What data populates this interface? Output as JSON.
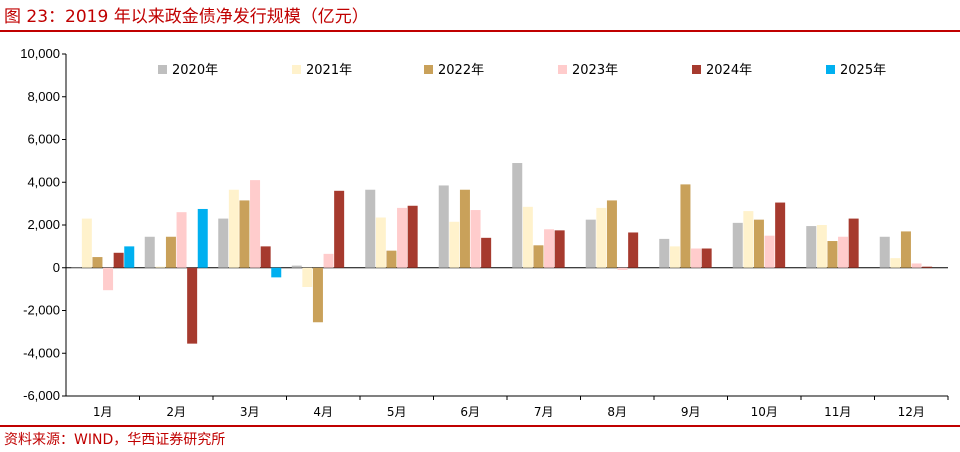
{
  "header": {
    "title": "图 23：2019 年以来政金债净发行规模（亿元）"
  },
  "footer": {
    "source": "资料来源：WIND，华西证券研究所"
  },
  "chart_data": {
    "type": "bar",
    "title": "2019 年以来政金债净发行规模（亿元）",
    "xlabel": "",
    "ylabel": "",
    "ylim": [
      -6000,
      10000
    ],
    "yticks": [
      10000,
      8000,
      6000,
      4000,
      2000,
      0,
      -2000,
      -4000,
      -6000
    ],
    "ytick_labels": [
      "10,000",
      "8,000",
      "6,000",
      "4,000",
      "2,000",
      "0",
      "-2,000",
      "-4,000",
      "-6,000"
    ],
    "grid": false,
    "legend_position": "top",
    "categories": [
      "1月",
      "2月",
      "3月",
      "4月",
      "5月",
      "6月",
      "7月",
      "8月",
      "9月",
      "10月",
      "11月",
      "12月"
    ],
    "series": [
      {
        "name": "2020年",
        "color": "#bfbfbf",
        "values": [
          -50,
          1450,
          2300,
          100,
          3650,
          3850,
          4900,
          2250,
          1350,
          2100,
          1950,
          1450
        ]
      },
      {
        "name": "2021年",
        "color": "#fff2cc",
        "values": [
          2300,
          50,
          3650,
          -900,
          2350,
          2150,
          2850,
          2800,
          1000,
          2650,
          2000,
          450
        ]
      },
      {
        "name": "2022年",
        "color": "#c9a15a",
        "values": [
          500,
          1450,
          3150,
          -2550,
          800,
          3650,
          1050,
          3150,
          3900,
          2250,
          1250,
          1700
        ]
      },
      {
        "name": "2023年",
        "color": "#ffcccc",
        "values": [
          -1050,
          2600,
          4100,
          650,
          2800,
          2700,
          1800,
          -100,
          900,
          1500,
          1450,
          200
        ]
      },
      {
        "name": "2024年",
        "color": "#a63a2e",
        "values": [
          700,
          -3550,
          1000,
          3600,
          2900,
          1400,
          1750,
          1650,
          900,
          3050,
          2300,
          50
        ]
      },
      {
        "name": "2025年",
        "color": "#00b0f0",
        "values": [
          1000,
          2750,
          -450,
          null,
          null,
          null,
          null,
          null,
          null,
          null,
          null,
          null
        ]
      }
    ]
  }
}
